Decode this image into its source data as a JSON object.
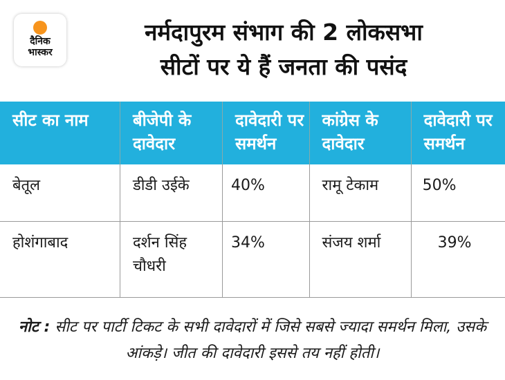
{
  "logo": {
    "line1": "दैनिक",
    "line2": "भास्कर",
    "accent": "#f7941d"
  },
  "title": {
    "line1": "नर्मदापुरम संभाग की 2 लोकसभा",
    "line2": "सीटों पर ये हैं जनता की पसंद"
  },
  "table": {
    "headers": [
      "सीट का नाम",
      "बीजेपी के दावेदार",
      "दावेदारी पर समर्थन",
      "कांग्रेस के दावेदार",
      "दावेदारी पर समर्थन"
    ],
    "rows": [
      [
        "बेतूल",
        "डीडी उईके",
        "40%",
        "रामू टेकाम",
        "50%"
      ],
      [
        "होशंगाबाद",
        "दर्शन सिंह चौधरी",
        "34%",
        "संजय शर्मा",
        "39%"
      ]
    ],
    "header_color": "#22b0dd"
  },
  "note": {
    "label": "नोट :",
    "text": "सीट पर पार्टी टिकट के सभी दावेदारों में जिसे सबसे ज्यादा समर्थन मिला, उसके आंकड़े। जीत की दावेदारी इससे तय नहीं होती।"
  }
}
